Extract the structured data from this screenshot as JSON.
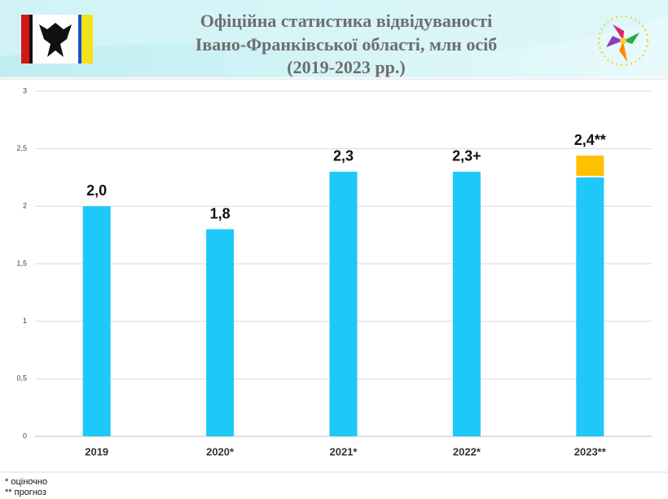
{
  "chart_data": {
    "type": "bar",
    "stacked": true,
    "title": [
      "Офіційна статистика відвідуваності",
      "Івано-Франківської області, млн осіб",
      "(2019-2023 рр.)"
    ],
    "categories": [
      "2019",
      "2020*",
      "2021*",
      "2022*",
      "2023**"
    ],
    "series": [
      {
        "color": "#1ec8f8",
        "values": [
          2.0,
          1.8,
          2.3,
          2.3,
          2.25
        ],
        "value_labels": [
          "2,0",
          "1,8",
          "2,3",
          "2,3+",
          null
        ]
      },
      {
        "color": "#ffc000",
        "values": [
          null,
          null,
          null,
          null,
          0.19
        ],
        "value_labels": [
          null,
          null,
          null,
          null,
          "2,4**"
        ]
      }
    ],
    "ylim": [
      0,
      3
    ],
    "yticks": [
      0,
      {
        "value": 0.5,
        "label": "0,5"
      },
      1,
      {
        "value": 1.5,
        "label": "1,5"
      },
      2,
      {
        "value": 2.5,
        "label": "2,5"
      },
      3
    ],
    "grid": true,
    "notes": [
      "*  оціночно",
      "** прогноз"
    ]
  }
}
